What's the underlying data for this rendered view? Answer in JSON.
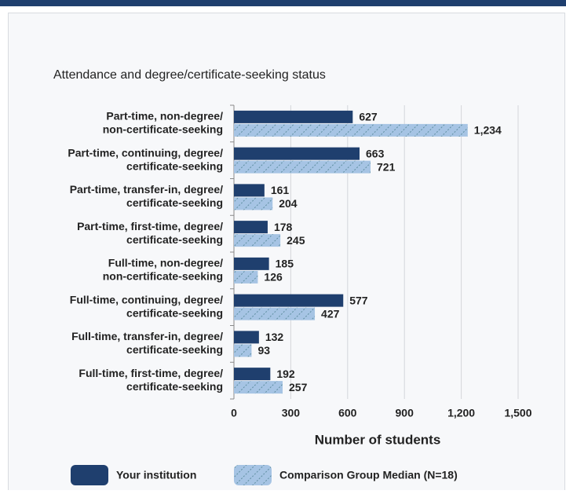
{
  "chart_data": {
    "type": "bar",
    "orientation": "horizontal",
    "title": "Attendance and degree/certificate-seeking status",
    "xlabel": "Number of students",
    "categories": [
      [
        "Part-time, non-degree/",
        "non-certificate-seeking"
      ],
      [
        "Part-time, continuing, degree/",
        "certificate-seeking"
      ],
      [
        "Part-time, transfer-in, degree/",
        "certificate-seeking"
      ],
      [
        "Part-time, first-time, degree/",
        "certificate-seeking"
      ],
      [
        "Full-time, non-degree/",
        "non-certificate-seeking"
      ],
      [
        "Full-time, continuing, degree/",
        "certificate-seeking"
      ],
      [
        "Full-time, transfer-in, degree/",
        "certificate-seeking"
      ],
      [
        "Full-time, first-time, degree/",
        "certificate-seeking"
      ]
    ],
    "series": [
      {
        "name": "Your institution",
        "color": "#1f3f6e",
        "values": [
          627,
          663,
          161,
          178,
          185,
          577,
          132,
          192
        ]
      },
      {
        "name": "Comparison Group Median (N=18)",
        "color": "#a6c4e4",
        "values": [
          1234,
          721,
          204,
          245,
          126,
          427,
          93,
          257
        ],
        "value_labels": [
          "1,234",
          "721",
          "204",
          "245",
          "126",
          "427",
          "93",
          "257"
        ]
      }
    ],
    "xlim": [
      0,
      1500
    ],
    "xticks": [
      0,
      300,
      600,
      900,
      {
        "value": 1200,
        "label": "1,200"
      },
      {
        "value": 1500,
        "label": "1,500"
      }
    ],
    "grid": true
  }
}
